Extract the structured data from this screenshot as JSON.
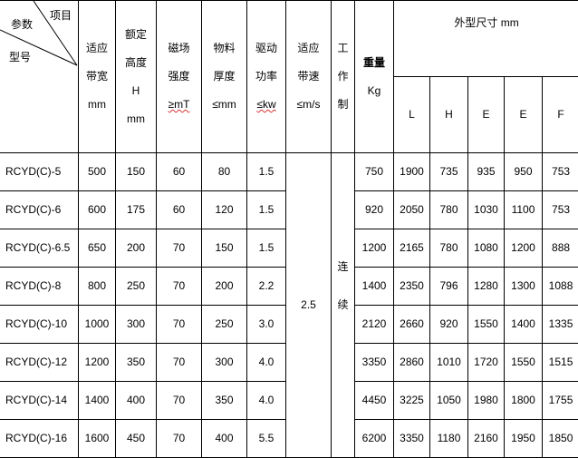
{
  "header": {
    "corner": {
      "item": "项目",
      "param": "参数",
      "model": "型号"
    },
    "columns": [
      [
        "适应",
        "带宽",
        "mm"
      ],
      [
        "额定",
        "高度",
        "H",
        "mm"
      ],
      [
        "磁场",
        "强度",
        "≥mT"
      ],
      [
        "物料",
        "厚度",
        "≤mm"
      ],
      [
        "驱动",
        "功率",
        "≤kw"
      ],
      [
        "适应",
        "带速",
        "≤m/s"
      ],
      [
        "工",
        "作",
        "制"
      ],
      [
        "重量",
        "Kg"
      ]
    ],
    "dims_title": "外型尺寸 mm",
    "dims": [
      "L",
      "H",
      "E",
      "E",
      "F"
    ]
  },
  "shared": {
    "speed": "2.5",
    "duty": [
      "连",
      "续"
    ]
  },
  "rows": [
    {
      "model": "RCYD(C)-5",
      "width": "500",
      "height": "150",
      "field": "60",
      "thick": "80",
      "power": "1.5",
      "weight": "750",
      "dims": [
        "1900",
        "735",
        "935",
        "950",
        "753"
      ]
    },
    {
      "model": "RCYD(C)-6",
      "width": "600",
      "height": "175",
      "field": "60",
      "thick": "120",
      "power": "1.5",
      "weight": "920",
      "dims": [
        "2050",
        "780",
        "1030",
        "1100",
        "753"
      ]
    },
    {
      "model": "RCYD(C)-6.5",
      "width": "650",
      "height": "200",
      "field": "70",
      "thick": "150",
      "power": "1.5",
      "weight": "1200",
      "dims": [
        "2165",
        "780",
        "1080",
        "1200",
        "888"
      ]
    },
    {
      "model": "RCYD(C)-8",
      "width": "800",
      "height": "250",
      "field": "70",
      "thick": "200",
      "power": "2.2",
      "weight": "1400",
      "dims": [
        "2350",
        "796",
        "1280",
        "1300",
        "1088"
      ]
    },
    {
      "model": "RCYD(C)-10",
      "width": "1000",
      "height": "300",
      "field": "70",
      "thick": "250",
      "power": "3.0",
      "weight": "2120",
      "dims": [
        "2660",
        "920",
        "1550",
        "1400",
        "1335"
      ]
    },
    {
      "model": "RCYD(C)-12",
      "width": "1200",
      "height": "350",
      "field": "70",
      "thick": "300",
      "power": "4.0",
      "weight": "3350",
      "dims": [
        "2860",
        "1010",
        "1720",
        "1550",
        "1515"
      ]
    },
    {
      "model": "RCYD(C)-14",
      "width": "1400",
      "height": "400",
      "field": "70",
      "thick": "350",
      "power": "4.0",
      "weight": "4450",
      "dims": [
        "3225",
        "1050",
        "1980",
        "1800",
        "1755"
      ]
    },
    {
      "model": "RCYD(C)-16",
      "width": "1600",
      "height": "450",
      "field": "70",
      "thick": "400",
      "power": "5.5",
      "weight": "6200",
      "dims": [
        "3350",
        "1180",
        "2160",
        "1950",
        "1850"
      ]
    }
  ]
}
